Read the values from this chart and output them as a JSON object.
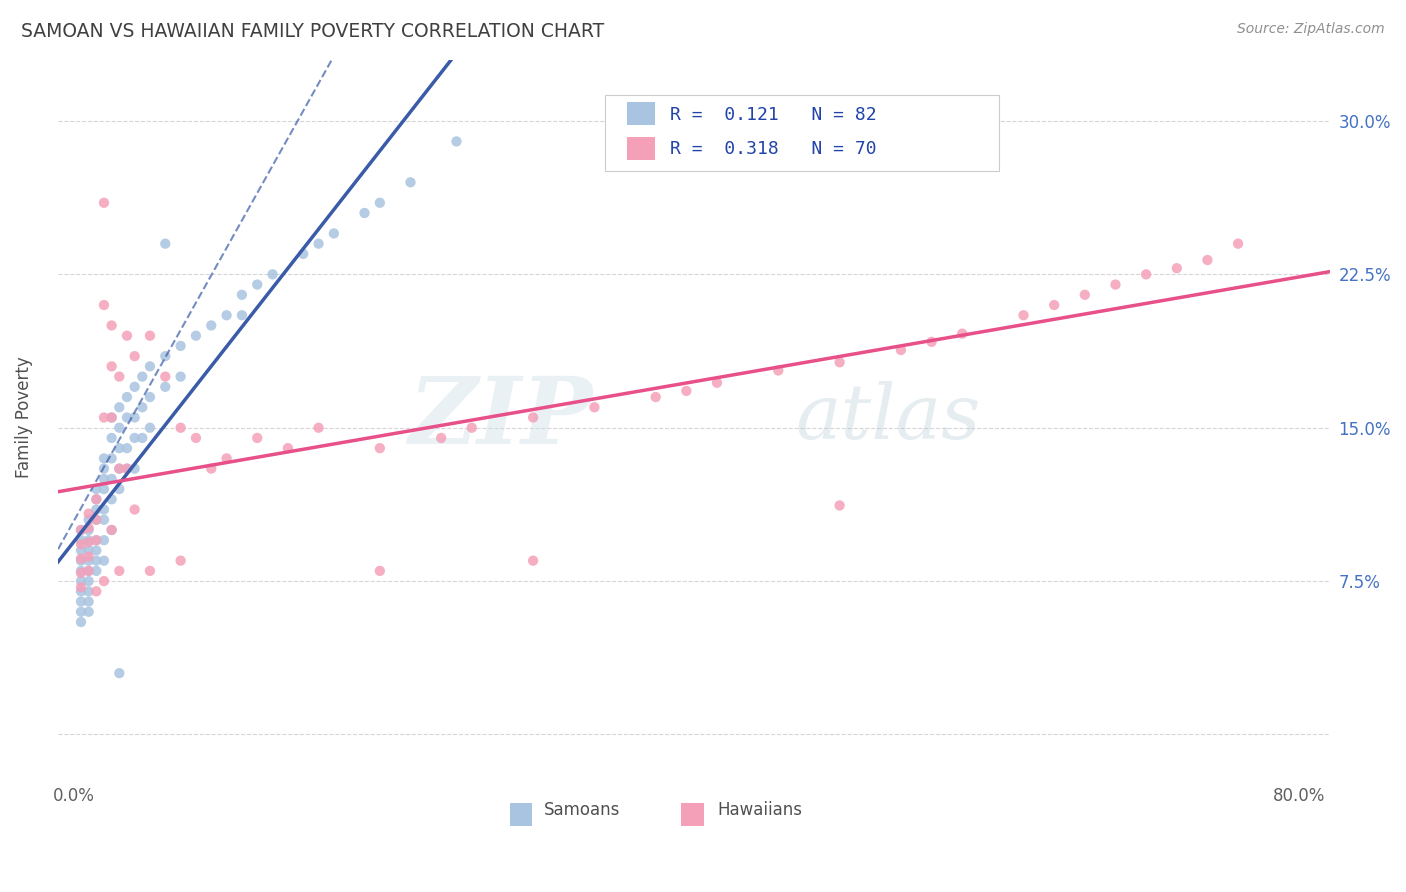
{
  "title": "SAMOAN VS HAWAIIAN FAMILY POVERTY CORRELATION CHART",
  "source": "Source: ZipAtlas.com",
  "ylabel": "Family Poverty",
  "xlim": [
    -0.01,
    0.82
  ],
  "ylim": [
    -0.02,
    0.33
  ],
  "xticks": [
    0.0,
    0.2,
    0.4,
    0.6,
    0.8
  ],
  "xticklabels": [
    "0.0%",
    "",
    "",
    "",
    "80.0%"
  ],
  "yticks": [
    0.0,
    0.075,
    0.15,
    0.225,
    0.3
  ],
  "yticklabels": [
    "",
    "7.5%",
    "15.0%",
    "22.5%",
    "30.0%"
  ],
  "samoan_color": "#a8c4e0",
  "hawaiian_color": "#f4a0b8",
  "samoan_line_color": "#3a5ca8",
  "hawaiian_line_color": "#e8508a",
  "grid_color": "#cccccc",
  "background_color": "#ffffff",
  "title_color": "#404040",
  "source_color": "#909090",
  "right_tick_color": "#4472c4",
  "samoan_x": [
    0.005,
    0.005,
    0.005,
    0.005,
    0.005,
    0.005,
    0.005,
    0.005,
    0.005,
    0.005,
    0.01,
    0.01,
    0.01,
    0.01,
    0.01,
    0.01,
    0.01,
    0.01,
    0.01,
    0.01,
    0.015,
    0.015,
    0.015,
    0.015,
    0.015,
    0.015,
    0.015,
    0.015,
    0.02,
    0.02,
    0.02,
    0.02,
    0.02,
    0.02,
    0.02,
    0.02,
    0.025,
    0.025,
    0.025,
    0.025,
    0.025,
    0.025,
    0.03,
    0.03,
    0.03,
    0.03,
    0.03,
    0.035,
    0.035,
    0.035,
    0.035,
    0.04,
    0.04,
    0.04,
    0.04,
    0.045,
    0.045,
    0.045,
    0.05,
    0.05,
    0.05,
    0.06,
    0.06,
    0.07,
    0.07,
    0.08,
    0.09,
    0.1,
    0.11,
    0.11,
    0.12,
    0.13,
    0.15,
    0.16,
    0.17,
    0.19,
    0.2,
    0.22,
    0.25,
    0.06,
    0.03
  ],
  "samoan_y": [
    0.1,
    0.095,
    0.09,
    0.085,
    0.08,
    0.075,
    0.07,
    0.065,
    0.06,
    0.055,
    0.105,
    0.1,
    0.095,
    0.09,
    0.085,
    0.08,
    0.075,
    0.07,
    0.065,
    0.06,
    0.12,
    0.115,
    0.11,
    0.105,
    0.095,
    0.09,
    0.085,
    0.08,
    0.135,
    0.13,
    0.125,
    0.12,
    0.11,
    0.105,
    0.095,
    0.085,
    0.155,
    0.145,
    0.135,
    0.125,
    0.115,
    0.1,
    0.16,
    0.15,
    0.14,
    0.13,
    0.12,
    0.165,
    0.155,
    0.14,
    0.13,
    0.17,
    0.155,
    0.145,
    0.13,
    0.175,
    0.16,
    0.145,
    0.18,
    0.165,
    0.15,
    0.185,
    0.17,
    0.19,
    0.175,
    0.195,
    0.2,
    0.205,
    0.215,
    0.205,
    0.22,
    0.225,
    0.235,
    0.24,
    0.245,
    0.255,
    0.26,
    0.27,
    0.29,
    0.24,
    0.03
  ],
  "hawaiian_x": [
    0.005,
    0.005,
    0.005,
    0.005,
    0.005,
    0.01,
    0.01,
    0.01,
    0.01,
    0.01,
    0.015,
    0.015,
    0.015,
    0.015,
    0.02,
    0.02,
    0.02,
    0.02,
    0.025,
    0.025,
    0.025,
    0.025,
    0.03,
    0.03,
    0.03,
    0.035,
    0.035,
    0.04,
    0.04,
    0.05,
    0.05,
    0.06,
    0.07,
    0.07,
    0.08,
    0.09,
    0.1,
    0.12,
    0.14,
    0.16,
    0.2,
    0.2,
    0.24,
    0.26,
    0.3,
    0.3,
    0.34,
    0.38,
    0.4,
    0.42,
    0.46,
    0.5,
    0.5,
    0.54,
    0.56,
    0.58,
    0.62,
    0.64,
    0.66,
    0.68,
    0.7,
    0.72,
    0.74,
    0.76
  ],
  "hawaiian_y": [
    0.1,
    0.093,
    0.086,
    0.079,
    0.072,
    0.108,
    0.101,
    0.094,
    0.087,
    0.08,
    0.115,
    0.105,
    0.095,
    0.07,
    0.26,
    0.21,
    0.155,
    0.075,
    0.2,
    0.18,
    0.155,
    0.1,
    0.175,
    0.13,
    0.08,
    0.195,
    0.13,
    0.185,
    0.11,
    0.195,
    0.08,
    0.175,
    0.15,
    0.085,
    0.145,
    0.13,
    0.135,
    0.145,
    0.14,
    0.15,
    0.14,
    0.08,
    0.145,
    0.15,
    0.155,
    0.085,
    0.16,
    0.165,
    0.168,
    0.172,
    0.178,
    0.182,
    0.112,
    0.188,
    0.192,
    0.196,
    0.205,
    0.21,
    0.215,
    0.22,
    0.225,
    0.228,
    0.232,
    0.24
  ]
}
